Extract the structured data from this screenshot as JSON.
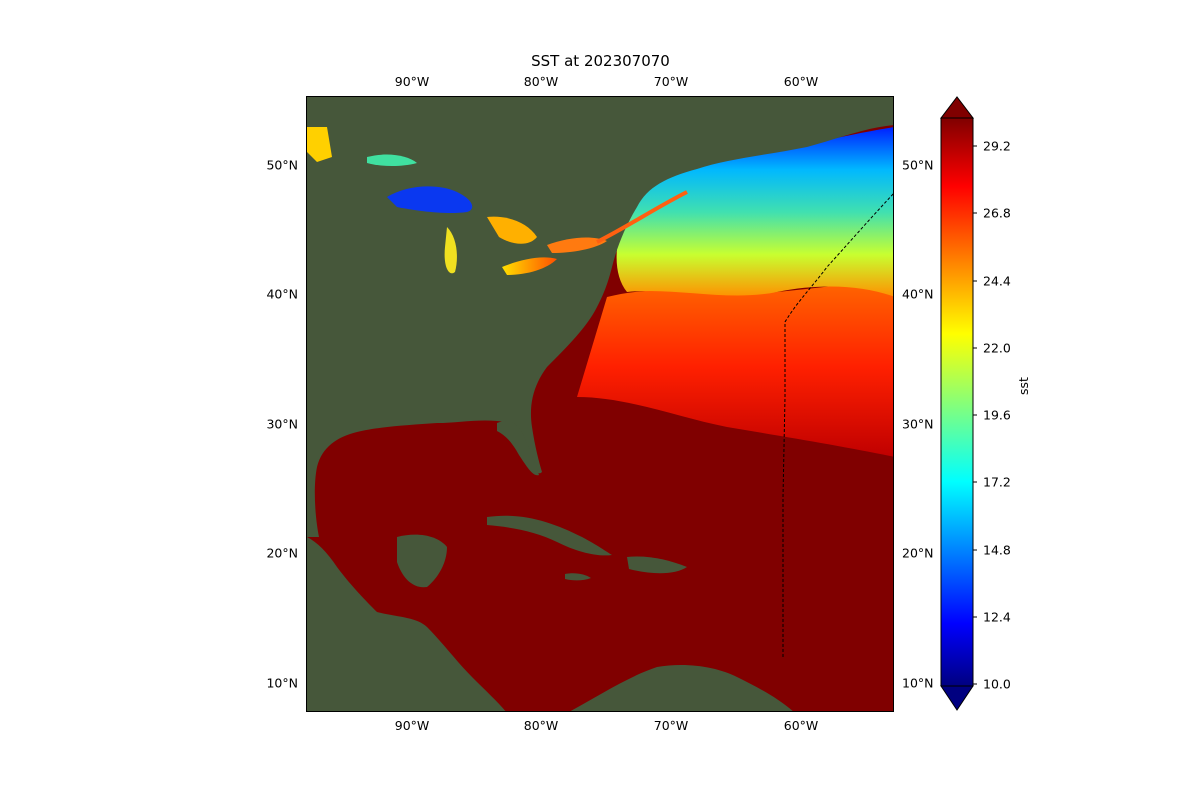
{
  "title": "SST at 202307070",
  "lon_ticks": [
    "90°W",
    "80°W",
    "70°W",
    "60°W"
  ],
  "lat_ticks": [
    "50°N",
    "40°N",
    "30°N",
    "20°N",
    "10°N"
  ],
  "colorbar": {
    "label": "sst",
    "ticks": [
      "29.2",
      "26.8",
      "24.4",
      "22.0",
      "19.6",
      "17.2",
      "14.8",
      "12.4",
      "10.0"
    ],
    "min": 10.0,
    "max": 30.4,
    "extend": "both",
    "colormap": "jet"
  },
  "colors": {
    "land": "#46573a",
    "warm_sst": "#800000",
    "track_line": "#000000"
  }
}
